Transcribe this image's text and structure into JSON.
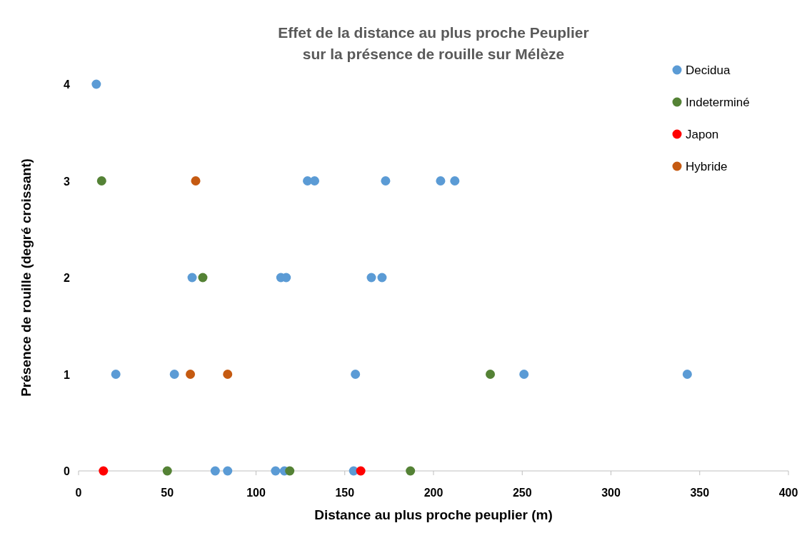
{
  "chart_data": {
    "type": "scatter",
    "title": "Effet de la distance au plus proche Peuplier\nsur la présence de rouille sur Mélèze",
    "xlabel": "Distance au plus proche peuplier (m)",
    "ylabel": "Présence de rouille (degré croissant)",
    "xlim": [
      0,
      400
    ],
    "xticks": [
      0,
      50,
      100,
      150,
      200,
      250,
      300,
      350,
      400
    ],
    "ylim": [
      0,
      4
    ],
    "yticks": [
      0,
      1,
      2,
      3,
      4
    ],
    "grid": false,
    "legend": "top right",
    "marker": "circle",
    "series": [
      {
        "name": "Decidua",
        "color": "#5b9bd5",
        "x": [
          10,
          21,
          54,
          64,
          77,
          84,
          111,
          114,
          117,
          116,
          129,
          133,
          155,
          156,
          165,
          171,
          173,
          204,
          212,
          251,
          343
        ],
        "values": [
          4,
          1,
          1,
          2,
          0,
          0,
          0,
          2,
          2,
          0,
          3,
          3,
          0,
          1,
          2,
          2,
          3,
          3,
          3,
          1,
          1
        ]
      },
      {
        "name": "Indeterminé",
        "color": "#548235",
        "x": [
          13,
          70,
          50,
          119,
          187,
          232
        ],
        "values": [
          3,
          2,
          0,
          0,
          0,
          1
        ]
      },
      {
        "name": "Japon",
        "color": "#ff0000",
        "x": [
          14,
          159
        ],
        "values": [
          0,
          0
        ]
      },
      {
        "name": "Hybride",
        "color": "#c55a11",
        "x": [
          66,
          63,
          84
        ],
        "values": [
          3,
          1,
          1
        ]
      }
    ]
  }
}
